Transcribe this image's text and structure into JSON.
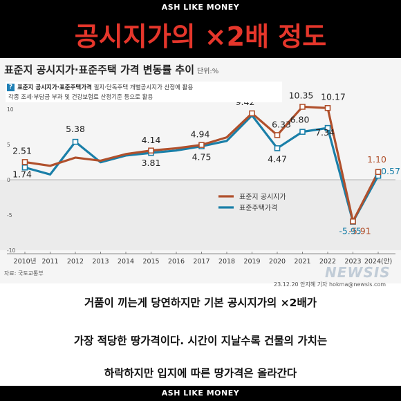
{
  "banner_top": "ASH LIKE MONEY",
  "banner_bottom": "ASH LIKE MONEY",
  "headline": "공시지가의 ×2배 정도",
  "chart_title": "표준지 공시지가·표준주택 가격 변동률 추이",
  "chart_unit": "단위:%",
  "note": {
    "icon": "question-icon",
    "bold": "표준지 공시지가·표준주택가격",
    "line1": "필지·단독주택 개별공시지가 산정에 활용",
    "line2": "각종 조세·부담금 부과 및 건강보험료 산정기준 등으로 활용"
  },
  "source": "자료: 국토교통부",
  "credit": "23.12.20 안지혜 기자 hokma@newsis.com",
  "watermark": "NEWSIS",
  "captions": [
    "거품이 끼는게 당연하지만 기본 공시지가의 ×2배가",
    "가장 적당한 땅가격이다. 시간이 지날수록 건물의 가치는",
    "하락하지만 입지에 따른 땅가격은 올라간다"
  ],
  "chart_data": {
    "type": "line",
    "title": "표준지 공시지가·표준주택 가격 변동률 추이",
    "ylabel": "단위:%",
    "categories": [
      "2010년",
      "2011",
      "2012",
      "2013",
      "2014",
      "2015",
      "2016",
      "2017",
      "2018",
      "2019",
      "2020",
      "2021",
      "2022",
      "2023",
      "2024(안)"
    ],
    "ylim": [
      -10,
      10
    ],
    "yticks": [
      10,
      5,
      0,
      -5,
      -10
    ],
    "grid": false,
    "legend": "right",
    "series": [
      {
        "name": "표준지 공시지가",
        "color": "#b0502c",
        "values": [
          2.51,
          1.98,
          3.14,
          2.7,
          3.64,
          4.14,
          4.47,
          4.94,
          6.02,
          9.42,
          6.33,
          10.35,
          10.17,
          -5.91,
          1.1
        ],
        "labels": [
          "2.51",
          null,
          null,
          null,
          null,
          "4.14",
          null,
          "4.94",
          null,
          "9.42",
          "6.33",
          "10.35",
          "10.17",
          "-5.91",
          "1.10"
        ]
      },
      {
        "name": "표준주택가격",
        "color": "#1a7fa8",
        "values": [
          1.74,
          0.75,
          5.38,
          2.48,
          3.44,
          3.81,
          4.15,
          4.75,
          5.51,
          9.13,
          4.47,
          6.8,
          7.34,
          -5.95,
          0.57
        ],
        "labels": [
          "1.74",
          null,
          "5.38",
          null,
          null,
          "3.81",
          null,
          "4.75",
          null,
          null,
          "4.47",
          "6.80",
          "7.34",
          "-5.95",
          "0.57"
        ]
      }
    ]
  }
}
